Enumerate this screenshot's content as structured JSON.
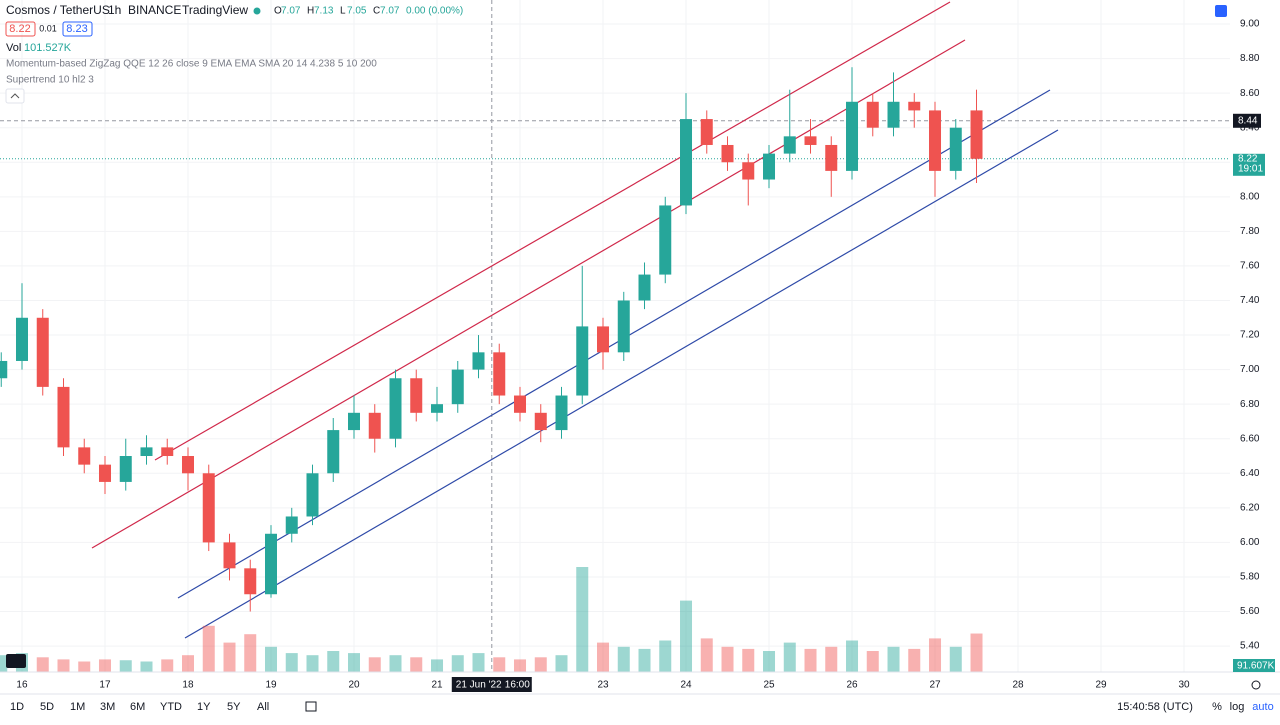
{
  "header": {
    "symbol": "Cosmos / TetherUS",
    "interval": "1h",
    "exchange": "BINANCE",
    "source": "TradingView",
    "ohlc": [
      {
        "label": "O",
        "value": 7.07
      },
      {
        "label": "H",
        "value": 7.13
      },
      {
        "label": "L",
        "value": 7.05
      },
      {
        "label": "C",
        "value": 7.07
      }
    ],
    "change": "0.00 (0.00%)",
    "bid": "8.22",
    "spread": "0.01",
    "ask": "8.23",
    "vol_label": "Vol",
    "vol_value": "101.527K",
    "indicators": [
      "Momentum-based ZigZag QQE 12 26 close 9 EMA EMA SMA 20 14 4.238 5 10 200",
      "Supertrend 10 hl2 3"
    ]
  },
  "chart_data": {
    "type": "candlestick",
    "x": [
      15.75,
      16.0,
      16.25,
      16.5,
      16.75,
      17.0,
      17.25,
      17.5,
      17.75,
      18.0,
      18.25,
      18.5,
      18.75,
      19.0,
      19.25,
      19.5,
      19.75,
      20.0,
      20.25,
      20.5,
      20.75,
      21.0,
      21.25,
      21.5,
      21.75,
      22.0,
      22.25,
      22.5,
      22.75,
      23.0,
      23.25,
      23.5,
      23.75,
      24.0,
      24.25,
      24.5,
      24.75,
      25.0,
      25.25,
      25.5,
      25.75,
      26.0,
      26.25,
      26.5,
      26.75,
      27.0,
      27.25,
      27.5
    ],
    "open": [
      6.95,
      7.05,
      7.3,
      6.9,
      6.55,
      6.45,
      6.35,
      6.5,
      6.55,
      6.5,
      6.4,
      6.0,
      5.85,
      5.7,
      6.05,
      6.15,
      6.4,
      6.65,
      6.75,
      6.6,
      6.95,
      6.75,
      6.8,
      7.0,
      7.1,
      6.85,
      6.75,
      6.65,
      6.85,
      7.25,
      7.1,
      7.4,
      7.55,
      7.95,
      8.45,
      8.3,
      8.2,
      8.1,
      8.25,
      8.35,
      8.3,
      8.15,
      8.55,
      8.4,
      8.55,
      8.5,
      8.15,
      8.5
    ],
    "high": [
      7.1,
      7.5,
      7.35,
      6.95,
      6.6,
      6.5,
      6.6,
      6.62,
      6.6,
      6.55,
      6.45,
      6.05,
      5.9,
      6.1,
      6.2,
      6.45,
      6.72,
      6.85,
      6.8,
      7.0,
      7.0,
      6.9,
      7.05,
      7.2,
      7.15,
      6.9,
      6.8,
      6.9,
      7.6,
      7.3,
      7.45,
      7.62,
      8.0,
      8.6,
      8.5,
      8.35,
      8.25,
      8.3,
      8.62,
      8.45,
      8.35,
      8.75,
      8.6,
      8.72,
      8.6,
      8.55,
      8.45,
      8.62
    ],
    "low": [
      6.9,
      7.0,
      6.85,
      6.5,
      6.4,
      6.28,
      6.3,
      6.45,
      6.45,
      6.3,
      5.95,
      5.78,
      5.6,
      5.68,
      6.0,
      6.1,
      6.35,
      6.6,
      6.52,
      6.55,
      6.7,
      6.7,
      6.75,
      6.95,
      6.8,
      6.7,
      6.58,
      6.6,
      6.8,
      7.0,
      7.05,
      7.35,
      7.5,
      7.9,
      8.25,
      8.15,
      7.95,
      8.05,
      8.2,
      8.25,
      8.0,
      8.1,
      8.35,
      8.35,
      8.4,
      8.0,
      8.1,
      8.08
    ],
    "close": [
      7.05,
      7.3,
      6.9,
      6.55,
      6.45,
      6.35,
      6.5,
      6.55,
      6.5,
      6.4,
      6.0,
      5.85,
      5.7,
      6.05,
      6.15,
      6.4,
      6.65,
      6.75,
      6.6,
      6.95,
      6.75,
      6.8,
      7.0,
      7.1,
      6.85,
      6.75,
      6.65,
      6.85,
      7.25,
      7.1,
      7.4,
      7.55,
      7.95,
      8.45,
      8.3,
      8.2,
      8.1,
      8.25,
      8.35,
      8.3,
      8.15,
      8.55,
      8.4,
      8.55,
      8.5,
      8.15,
      8.4,
      8.22
    ],
    "volume": [
      40,
      45,
      35,
      30,
      25,
      30,
      28,
      25,
      30,
      40,
      110,
      70,
      90,
      60,
      45,
      40,
      50,
      45,
      35,
      40,
      35,
      30,
      40,
      45,
      35,
      30,
      35,
      40,
      250,
      70,
      60,
      55,
      75,
      170,
      80,
      60,
      55,
      50,
      70,
      55,
      60,
      75,
      50,
      60,
      55,
      80,
      60,
      91.607
    ],
    "up_color": "#26a69a",
    "down_color": "#ef5350",
    "xlim": [
      15.735,
      30.554
    ],
    "xticks": [
      16,
      17,
      18,
      19,
      20,
      21,
      22,
      23,
      24,
      25,
      26,
      27,
      28,
      29,
      30
    ],
    "ylim": [
      5.25,
      9.139
    ],
    "yticks": [
      {
        "value": 9.0,
        "label": "9.00"
      },
      {
        "value": 8.8,
        "label": "8.80"
      },
      {
        "value": 8.6,
        "label": "8.60"
      },
      {
        "value": 8.4,
        "label": "8.40"
      },
      {
        "value": 8.2,
        "label": "8.20"
      },
      {
        "value": 8.0,
        "label": "8.00"
      },
      {
        "value": 7.8,
        "label": "7.80"
      },
      {
        "value": 7.6,
        "label": "7.60"
      },
      {
        "value": 7.4,
        "label": "7.40"
      },
      {
        "value": 7.2,
        "label": "7.20"
      },
      {
        "value": 7.0,
        "label": "7.00"
      },
      {
        "value": 6.8,
        "label": "6.80"
      },
      {
        "value": 6.6,
        "label": "6.60"
      },
      {
        "value": 6.4,
        "label": "6.40"
      },
      {
        "value": 6.2,
        "label": "6.20"
      },
      {
        "value": 6.0,
        "label": "6.00"
      },
      {
        "value": 5.8,
        "label": "5.80"
      },
      {
        "value": 5.6,
        "label": "5.60"
      },
      {
        "value": 5.4,
        "label": "5.40"
      }
    ],
    "grid": true,
    "crosshair": {
      "value": 8.44,
      "label": "8.44",
      "time": "21 Jun '22",
      "hour": "16:00",
      "x": 21.66
    },
    "price_tag": {
      "value": 8.22,
      "label": "8.22",
      "countdown": "19:01"
    },
    "volume_tag": "91.607K"
  },
  "toolbar": {
    "ranges": [
      "1D",
      "5D",
      "1M",
      "3M",
      "6M",
      "YTD",
      "1Y",
      "5Y",
      "All"
    ],
    "clock": "15:40:58 (UTC)",
    "percent": "%",
    "log": "log",
    "auto": "auto"
  }
}
